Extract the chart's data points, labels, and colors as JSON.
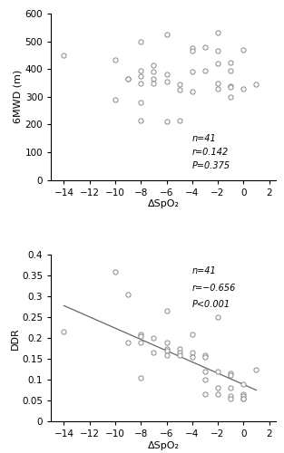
{
  "plot1": {
    "xlabel": "ΔSpO₂",
    "ylabel": "6MWD (m)",
    "xlim": [
      -15,
      2.5
    ],
    "ylim": [
      0,
      600
    ],
    "xticks": [
      -14,
      -12,
      -10,
      -8,
      -6,
      -4,
      -2,
      0,
      2
    ],
    "yticks": [
      0,
      100,
      200,
      300,
      400,
      500,
      600
    ],
    "annot_n": "n=41",
    "annot_r": "r=0.142",
    "annot_p": "P=0.375",
    "x": [
      -14,
      -10,
      -10,
      -9,
      -9,
      -8,
      -8,
      -8,
      -8,
      -8,
      -7,
      -7,
      -7,
      -7,
      -6,
      -6,
      -6,
      -6,
      -5,
      -5,
      -5,
      -4,
      -4,
      -4,
      -4,
      -3,
      -3,
      -2,
      -2,
      -2,
      -2,
      -2,
      -1,
      -1,
      -1,
      -1,
      -1,
      0,
      0,
      1,
      -8
    ],
    "y": [
      450,
      435,
      290,
      365,
      365,
      500,
      395,
      375,
      350,
      280,
      415,
      390,
      365,
      350,
      525,
      380,
      355,
      210,
      345,
      325,
      215,
      475,
      465,
      390,
      320,
      480,
      395,
      530,
      465,
      420,
      350,
      330,
      425,
      395,
      340,
      335,
      300,
      470,
      330,
      345,
      215
    ]
  },
  "plot2": {
    "xlabel": "ΔSpO₂",
    "ylabel": "DDR",
    "xlim": [
      -15,
      2.5
    ],
    "ylim": [
      0,
      0.4
    ],
    "xticks": [
      -14,
      -12,
      -10,
      -8,
      -6,
      -4,
      -2,
      0,
      2
    ],
    "yticks": [
      0,
      0.05,
      0.1,
      0.15,
      0.2,
      0.25,
      0.3,
      0.35,
      0.4
    ],
    "ytick_labels": [
      "0",
      "0.05",
      "0.1",
      "0.15",
      "0.2",
      "0.25",
      "0.3",
      "0.35",
      "0.4"
    ],
    "annot_n": "n=41",
    "annot_r": "r=−0.656",
    "annot_p": "P<0.001",
    "x": [
      -14,
      -10,
      -9,
      -9,
      -8,
      -8,
      -8,
      -8,
      -7,
      -7,
      -6,
      -6,
      -6,
      -6,
      -6,
      -5,
      -5,
      -5,
      -4,
      -4,
      -4,
      -3,
      -3,
      -3,
      -3,
      -3,
      -2,
      -2,
      -2,
      -2,
      -1,
      -1,
      -1,
      -1,
      -1,
      0,
      0,
      0,
      0,
      0,
      1
    ],
    "y": [
      0.215,
      0.36,
      0.305,
      0.19,
      0.21,
      0.205,
      0.19,
      0.105,
      0.2,
      0.165,
      0.265,
      0.19,
      0.175,
      0.17,
      0.16,
      0.175,
      0.165,
      0.16,
      0.21,
      0.165,
      0.155,
      0.16,
      0.155,
      0.12,
      0.1,
      0.065,
      0.25,
      0.12,
      0.08,
      0.065,
      0.115,
      0.11,
      0.08,
      0.06,
      0.055,
      0.09,
      0.065,
      0.06,
      0.055,
      0.055,
      0.125
    ],
    "line_x": [
      -14,
      1
    ],
    "line_y": [
      0.278,
      0.075
    ],
    "line_color": "#666666"
  },
  "marker_facecolor": "white",
  "marker_edgecolor": "#888888",
  "marker_size": 14,
  "marker_linewidth": 0.7,
  "annotation_fontsize": 7,
  "axis_label_fontsize": 8,
  "tick_fontsize": 7.5,
  "line_width": 0.9
}
